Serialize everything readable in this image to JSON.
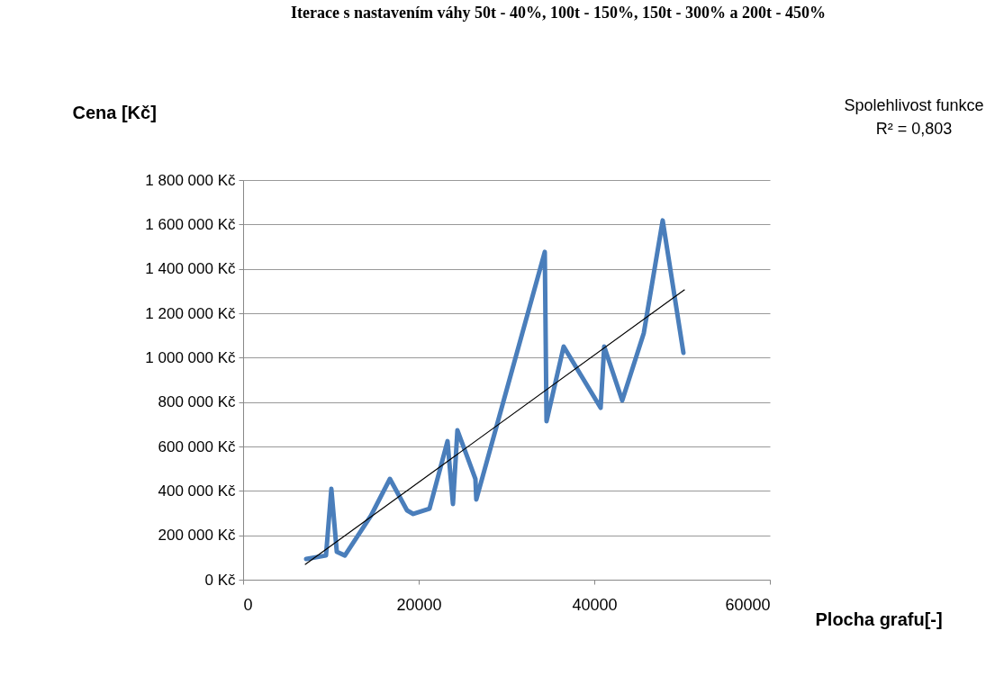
{
  "chart_data": {
    "type": "line",
    "title": "Iterace s nastavením váhy 50t - 40%, 100t - 150%, 150t - 300% a 200t - 450%",
    "xlabel": "Plocha  grafu[-]",
    "ylabel": "Cena [Kč]",
    "annotations": [
      "Spolehlivost funkce",
      "R² = 0,803"
    ],
    "series": [
      {
        "color": "#4a7ebb",
        "x": [
          7180,
          9440,
          10050,
          10670,
          11590,
          14560,
          16720,
          18670,
          19380,
          21230,
          23280,
          23900,
          24410,
          26460,
          26560,
          34360,
          34560,
          36510,
          40720,
          41130,
          43180,
          45640,
          47790,
          50150
        ],
        "values": [
          93000,
          109000,
          409000,
          126000,
          109000,
          288000,
          454000,
          312000,
          296000,
          320000,
          624000,
          341000,
          673000,
          454000,
          361000,
          1476000,
          714000,
          1050000,
          774000,
          1050000,
          807000,
          1111000,
          1618000,
          1022000
        ]
      },
      {
        "type": "line",
        "color": "#000000",
        "x": [
          7080,
          50260
        ],
        "values": [
          69000,
          1305000
        ]
      }
    ],
    "xlim": [
      0,
      60000
    ],
    "xticks": [
      0,
      20000,
      40000,
      60000
    ],
    "ylim": [
      0,
      1800000
    ],
    "yticks": [
      {
        "value": 0,
        "label": "0 Kč"
      },
      {
        "value": 200000,
        "label": "200 000 Kč"
      },
      {
        "value": 400000,
        "label": "400 000 Kč"
      },
      {
        "value": 600000,
        "label": "600 000 Kč"
      },
      {
        "value": 800000,
        "label": "800 000 Kč"
      },
      {
        "value": 1000000,
        "label": "1 000 000 Kč"
      },
      {
        "value": 1200000,
        "label": "1 200 000 Kč"
      },
      {
        "value": 1400000,
        "label": "1 400 000 Kč"
      },
      {
        "value": 1600000,
        "label": "1 600 000 Kč"
      },
      {
        "value": 1800000,
        "label": "1 800 000 Kč"
      }
    ],
    "grid": "y"
  }
}
